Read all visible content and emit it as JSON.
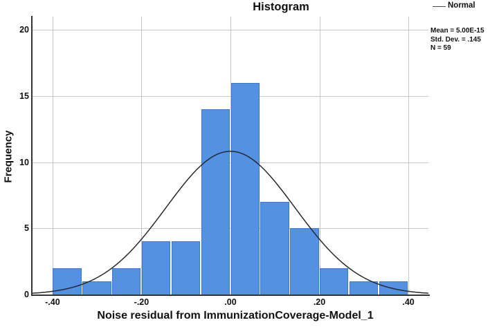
{
  "title": "Histogram",
  "legend": {
    "label": "Normal"
  },
  "stats": {
    "lines": [
      "Mean = 5.00E-15",
      "Std. Dev. = .145",
      "N = 59"
    ]
  },
  "chart_data": {
    "type": "bar",
    "subtype": "histogram",
    "title": "Histogram",
    "xlabel": "Noise residual from ImmunizationCoverage-Model_1",
    "ylabel": "Frequency",
    "bins": {
      "start": -0.4,
      "end": 0.4,
      "count": 12,
      "frequencies": [
        2,
        1,
        2,
        4,
        4,
        14,
        16,
        7,
        5,
        2,
        1,
        1
      ]
    },
    "normal_curve": {
      "mean": 5e-15,
      "std_dev": 0.145,
      "n": 59,
      "legend": "Normal"
    },
    "x_ticks": [
      "-.40",
      "-.20",
      ".00",
      ".20",
      ".40"
    ],
    "x_tick_values": [
      -0.4,
      -0.2,
      0.0,
      0.2,
      0.4
    ],
    "y_ticks": [
      0,
      5,
      10,
      15,
      20
    ],
    "xlim": [
      -0.445,
      0.445
    ],
    "ylim": [
      0,
      21
    ],
    "grid": true,
    "legend_position": "top-right",
    "colors": {
      "bar_fill": "#5591e2",
      "bar_border": "#3f78c8",
      "grid": "#c6c6c6",
      "axis": "#333333",
      "curve": "#26282e",
      "text": "#111111"
    }
  }
}
